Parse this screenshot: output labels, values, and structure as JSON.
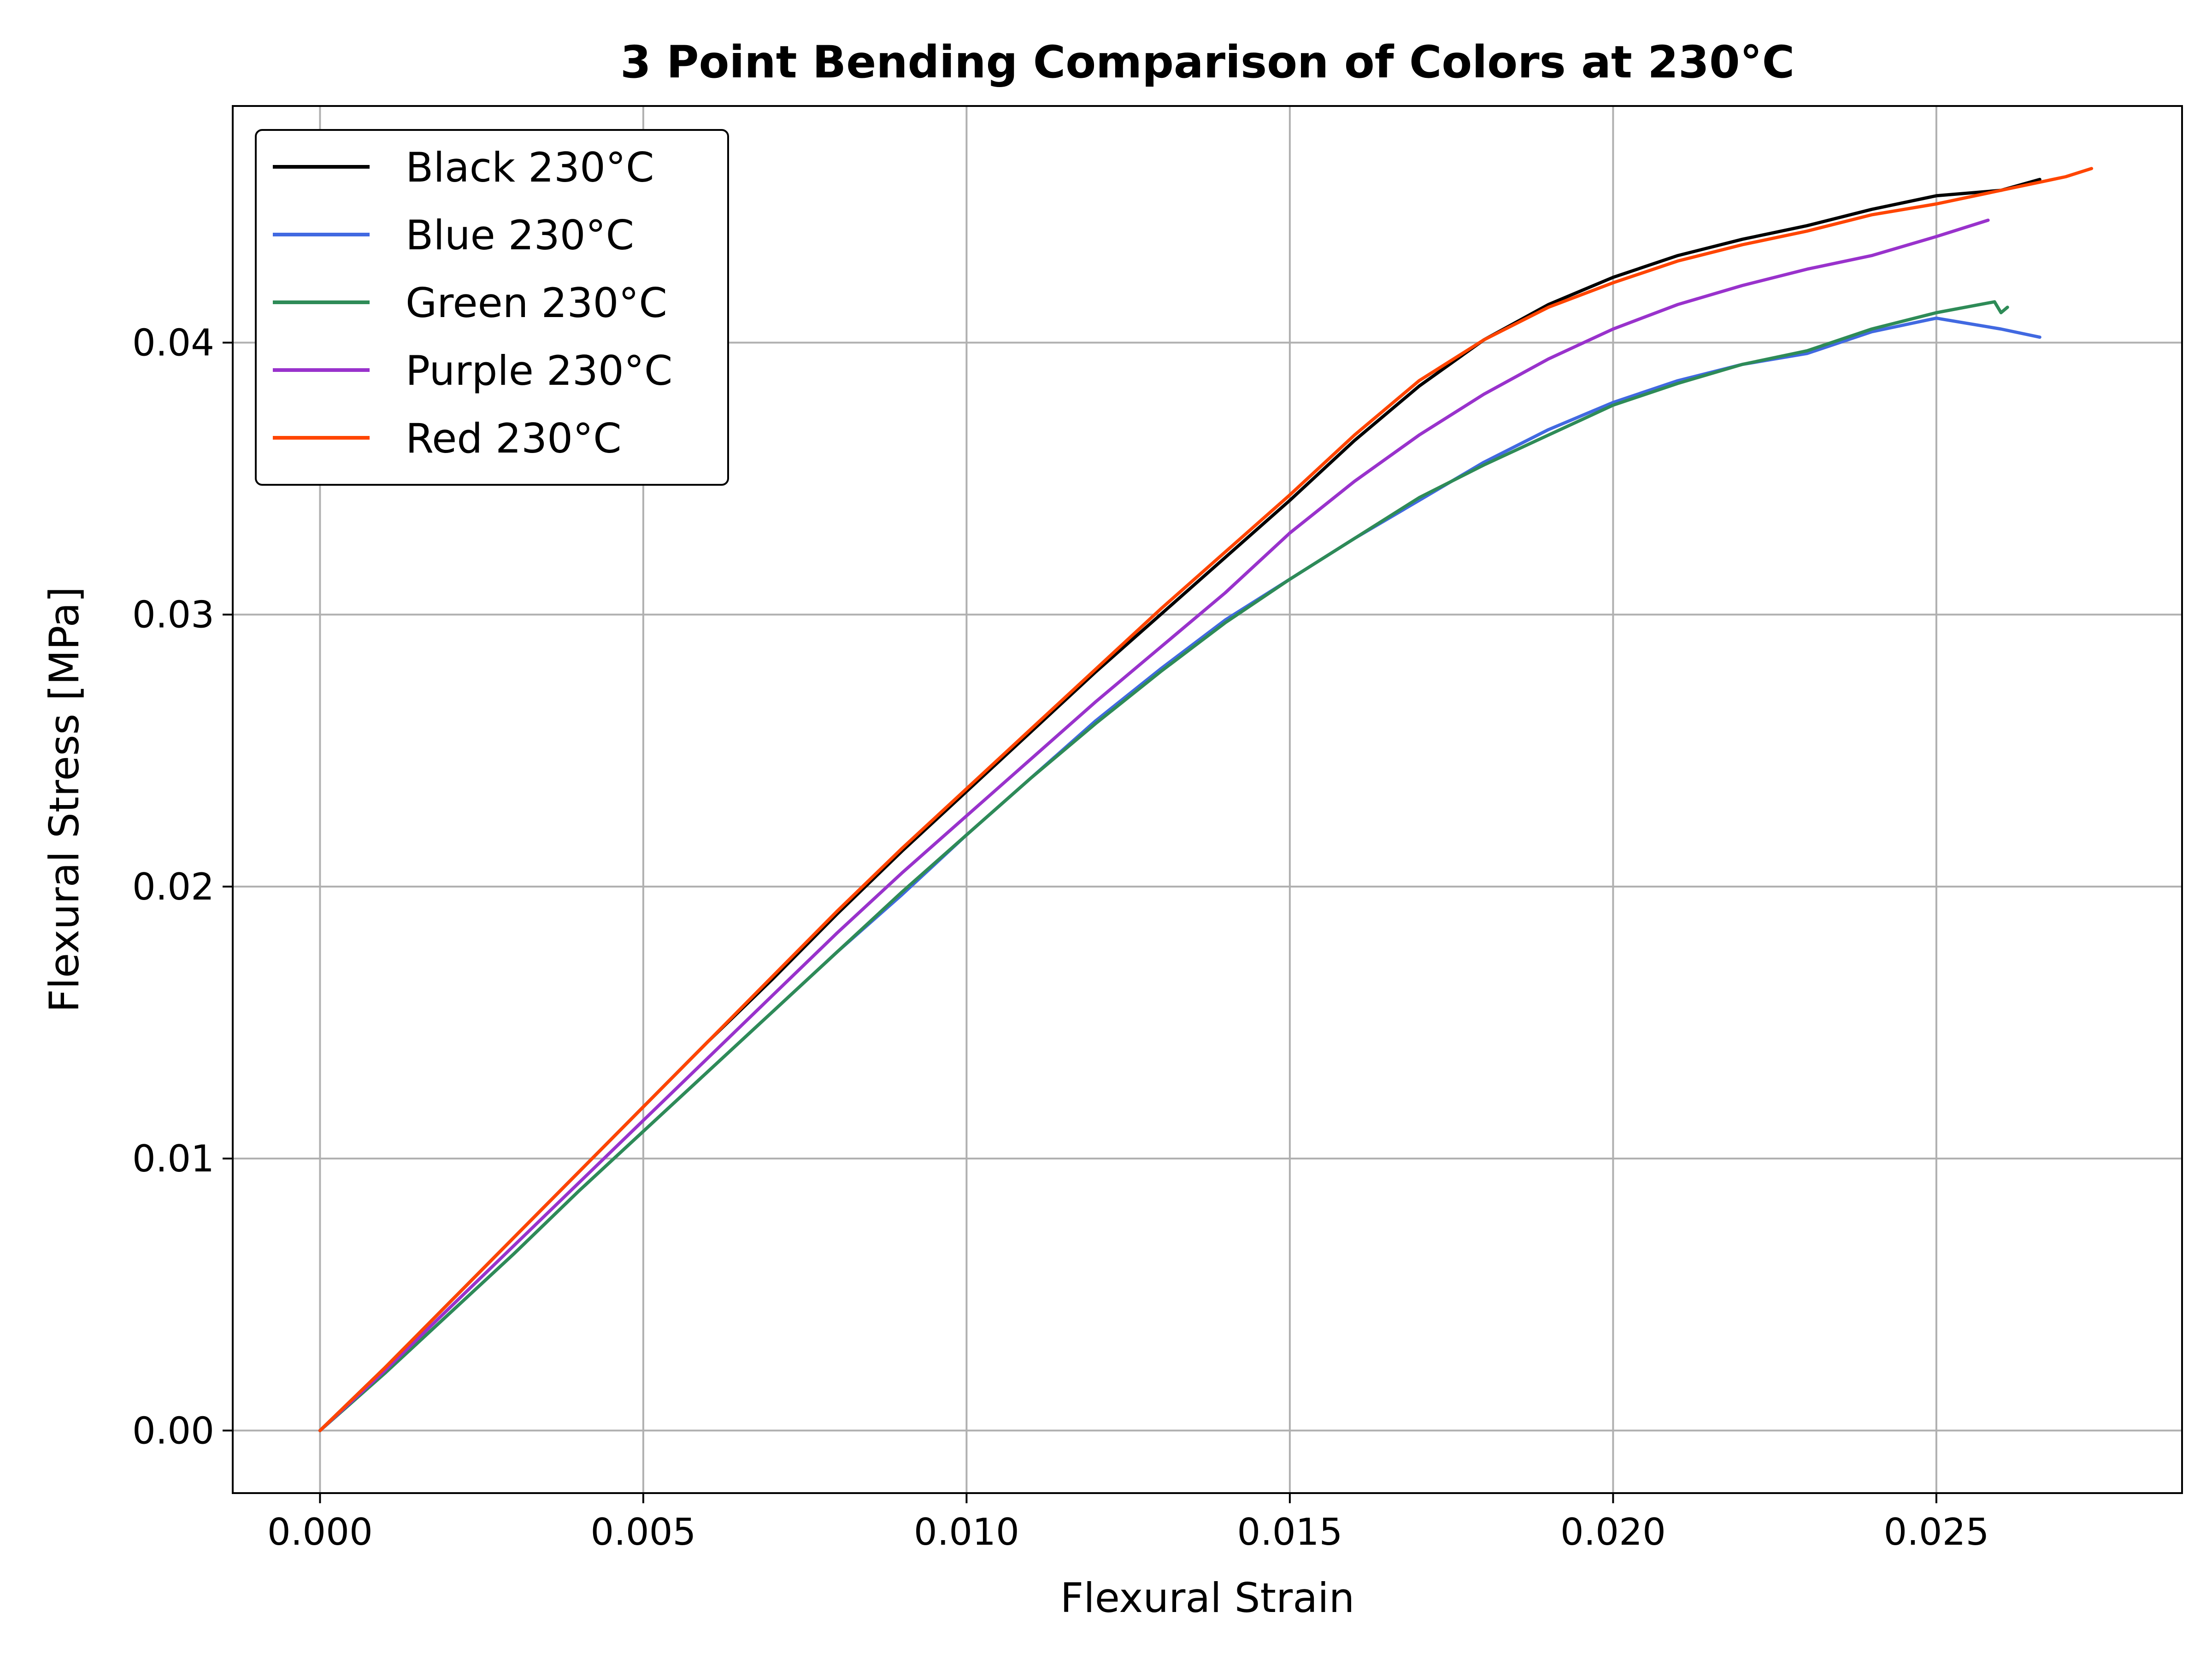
{
  "chart_data": {
    "type": "line",
    "title": "3 Point Bending Comparison of Colors at 230°C",
    "xlabel": "Flexural Strain",
    "ylabel": "Flexural Stress [MPa]",
    "xlim": [
      -0.00135,
      0.0288
    ],
    "ylim": [
      -0.0023,
      0.0487
    ],
    "x_ticks": [
      0.0,
      0.005,
      0.01,
      0.015,
      0.02,
      0.025
    ],
    "x_tick_labels": [
      "0.000",
      "0.005",
      "0.010",
      "0.015",
      "0.020",
      "0.025"
    ],
    "y_ticks": [
      0.0,
      0.01,
      0.02,
      0.03,
      0.04
    ],
    "y_tick_labels": [
      "0.00",
      "0.01",
      "0.02",
      "0.03",
      "0.04"
    ],
    "grid": true,
    "legend_position": "top-left",
    "series": [
      {
        "name": "Black 230°C",
        "color": "#000000",
        "points": [
          [
            0,
            0
          ],
          [
            0.001,
            0.0023
          ],
          [
            0.002,
            0.0047
          ],
          [
            0.003,
            0.0071
          ],
          [
            0.004,
            0.0095
          ],
          [
            0.005,
            0.0119
          ],
          [
            0.006,
            0.0143
          ],
          [
            0.007,
            0.0166
          ],
          [
            0.008,
            0.019
          ],
          [
            0.009,
            0.0213
          ],
          [
            0.01,
            0.0235
          ],
          [
            0.011,
            0.0257
          ],
          [
            0.012,
            0.0279
          ],
          [
            0.013,
            0.03
          ],
          [
            0.014,
            0.0321
          ],
          [
            0.015,
            0.0342
          ],
          [
            0.016,
            0.0364
          ],
          [
            0.017,
            0.0384
          ],
          [
            0.018,
            0.0401
          ],
          [
            0.019,
            0.0414
          ],
          [
            0.02,
            0.0424
          ],
          [
            0.021,
            0.0432
          ],
          [
            0.022,
            0.0438
          ],
          [
            0.023,
            0.0443
          ],
          [
            0.024,
            0.0449
          ],
          [
            0.025,
            0.0454
          ],
          [
            0.026,
            0.0456
          ],
          [
            0.0266,
            0.046
          ]
        ]
      },
      {
        "name": "Blue 230°C",
        "color": "#4169e1",
        "points": [
          [
            0,
            0
          ],
          [
            0.001,
            0.0021
          ],
          [
            0.002,
            0.0043
          ],
          [
            0.003,
            0.0065
          ],
          [
            0.004,
            0.0088
          ],
          [
            0.005,
            0.011
          ],
          [
            0.006,
            0.0132
          ],
          [
            0.007,
            0.0154
          ],
          [
            0.008,
            0.0176
          ],
          [
            0.009,
            0.0197
          ],
          [
            0.01,
            0.0219
          ],
          [
            0.011,
            0.024
          ],
          [
            0.012,
            0.0261
          ],
          [
            0.013,
            0.028
          ],
          [
            0.014,
            0.0298
          ],
          [
            0.015,
            0.0313
          ],
          [
            0.016,
            0.0328
          ],
          [
            0.017,
            0.0342
          ],
          [
            0.018,
            0.0356
          ],
          [
            0.019,
            0.0368
          ],
          [
            0.02,
            0.0378
          ],
          [
            0.021,
            0.0386
          ],
          [
            0.022,
            0.0392
          ],
          [
            0.023,
            0.0396
          ],
          [
            0.024,
            0.0404
          ],
          [
            0.025,
            0.0409
          ],
          [
            0.0255,
            0.0407
          ],
          [
            0.026,
            0.0405
          ],
          [
            0.0266,
            0.0402
          ]
        ]
      },
      {
        "name": "Green 230°C",
        "color": "#2e8b57",
        "points": [
          [
            0,
            0
          ],
          [
            0.001,
            0.0021
          ],
          [
            0.002,
            0.0043
          ],
          [
            0.003,
            0.0065
          ],
          [
            0.004,
            0.0088
          ],
          [
            0.005,
            0.011
          ],
          [
            0.006,
            0.0132
          ],
          [
            0.007,
            0.0154
          ],
          [
            0.008,
            0.0176
          ],
          [
            0.009,
            0.0198
          ],
          [
            0.01,
            0.0219
          ],
          [
            0.011,
            0.024
          ],
          [
            0.012,
            0.026
          ],
          [
            0.013,
            0.0279
          ],
          [
            0.014,
            0.0297
          ],
          [
            0.015,
            0.0313
          ],
          [
            0.016,
            0.0328
          ],
          [
            0.017,
            0.0343
          ],
          [
            0.018,
            0.0355
          ],
          [
            0.019,
            0.0366
          ],
          [
            0.02,
            0.0377
          ],
          [
            0.021,
            0.0385
          ],
          [
            0.022,
            0.0392
          ],
          [
            0.023,
            0.0397
          ],
          [
            0.024,
            0.0405
          ],
          [
            0.025,
            0.0411
          ],
          [
            0.0259,
            0.0415
          ],
          [
            0.026,
            0.0411
          ],
          [
            0.0261,
            0.0413
          ]
        ]
      },
      {
        "name": "Purple 230°C",
        "color": "#9932cc",
        "points": [
          [
            0,
            0
          ],
          [
            0.001,
            0.0022
          ],
          [
            0.002,
            0.0045
          ],
          [
            0.003,
            0.0068
          ],
          [
            0.004,
            0.0091
          ],
          [
            0.005,
            0.0114
          ],
          [
            0.006,
            0.0137
          ],
          [
            0.007,
            0.016
          ],
          [
            0.008,
            0.0183
          ],
          [
            0.009,
            0.0205
          ],
          [
            0.01,
            0.0226
          ],
          [
            0.011,
            0.0247
          ],
          [
            0.012,
            0.0268
          ],
          [
            0.013,
            0.0288
          ],
          [
            0.014,
            0.0308
          ],
          [
            0.015,
            0.033
          ],
          [
            0.016,
            0.0349
          ],
          [
            0.017,
            0.0366
          ],
          [
            0.018,
            0.0381
          ],
          [
            0.019,
            0.0394
          ],
          [
            0.02,
            0.0405
          ],
          [
            0.021,
            0.0414
          ],
          [
            0.022,
            0.0421
          ],
          [
            0.023,
            0.0427
          ],
          [
            0.024,
            0.0432
          ],
          [
            0.025,
            0.0439
          ],
          [
            0.0258,
            0.0445
          ]
        ]
      },
      {
        "name": "Red 230°C",
        "color": "#ff4500",
        "points": [
          [
            0,
            0
          ],
          [
            0.001,
            0.0023
          ],
          [
            0.002,
            0.0047
          ],
          [
            0.003,
            0.0071
          ],
          [
            0.004,
            0.0095
          ],
          [
            0.005,
            0.0119
          ],
          [
            0.006,
            0.0143
          ],
          [
            0.007,
            0.0167
          ],
          [
            0.008,
            0.0191
          ],
          [
            0.009,
            0.0214
          ],
          [
            0.01,
            0.0236
          ],
          [
            0.011,
            0.0258
          ],
          [
            0.012,
            0.028
          ],
          [
            0.013,
            0.0302
          ],
          [
            0.014,
            0.0323
          ],
          [
            0.015,
            0.0344
          ],
          [
            0.016,
            0.0366
          ],
          [
            0.017,
            0.0386
          ],
          [
            0.018,
            0.0401
          ],
          [
            0.019,
            0.0413
          ],
          [
            0.02,
            0.0422
          ],
          [
            0.021,
            0.043
          ],
          [
            0.022,
            0.0436
          ],
          [
            0.023,
            0.0441
          ],
          [
            0.024,
            0.0447
          ],
          [
            0.025,
            0.0451
          ],
          [
            0.026,
            0.0456
          ],
          [
            0.027,
            0.0461
          ],
          [
            0.0274,
            0.0464
          ]
        ]
      }
    ]
  }
}
